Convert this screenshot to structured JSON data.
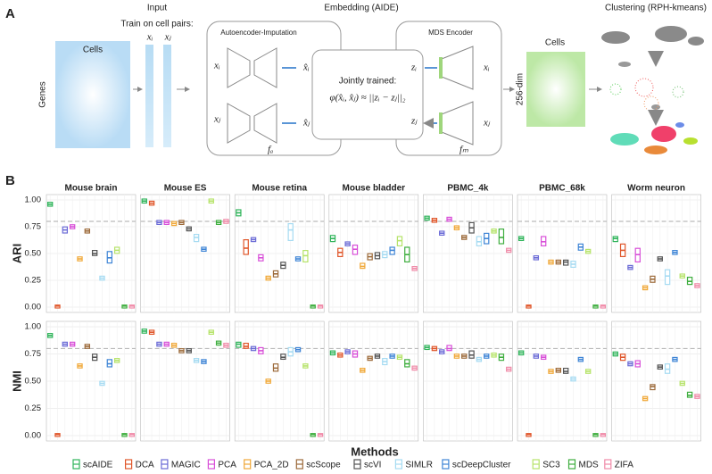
{
  "diagram": {
    "panel_a": "A",
    "panel_b": "B",
    "input_title": "Input",
    "train": "Train on cell pairs:",
    "xi": "xᵢ",
    "xj": "xⱼ",
    "cells": "Cells",
    "genes": "Genes",
    "embedding_title": "Embedding (AIDE)",
    "ae": "Autoencoder-Imputation",
    "mds": "MDS Encoder",
    "xhi": "x̂ᵢ",
    "xhj": "x̂ⱼ",
    "zi": "zᵢ",
    "zj": "zⱼ",
    "fa": "fₐ",
    "fm": "fₘ",
    "jointly": "Jointly trained:",
    "formula": "φ(x̂ᵢ, x̂ⱼ) ≈ ||zᵢ − zⱼ||₂",
    "dim": "256-dim",
    "clustering": "Clustering (RPH-kmeans)"
  },
  "chart_data": {
    "type": "box",
    "xlabel": "Methods",
    "panel_titles": [
      "Mouse brain",
      "Mouse ES",
      "Mouse retina",
      "Mouse bladder",
      "PBMC_4k",
      "PBMC_68k",
      "Worm neuron"
    ],
    "series": [
      {
        "name": "scAIDE",
        "color": "#2fb45a"
      },
      {
        "name": "DCA",
        "color": "#e0562a"
      },
      {
        "name": "MAGIC",
        "color": "#6b6bd6"
      },
      {
        "name": "PCA",
        "color": "#d84fd8"
      },
      {
        "name": "PCA_2D",
        "color": "#f0a838"
      },
      {
        "name": "scScope",
        "color": "#9c6a3a"
      },
      {
        "name": "scVI",
        "color": "#555555"
      },
      {
        "name": "SIMLR",
        "color": "#a6dbf2"
      },
      {
        "name": "scDeepCluster",
        "color": "#3f85d6"
      },
      {
        "name": "SC3",
        "color": "#b6e36a"
      },
      {
        "name": "MDS",
        "color": "#3fae3f"
      },
      {
        "name": "ZIFA",
        "color": "#f08aa8"
      }
    ],
    "ylim": [
      -0.05,
      1.05
    ],
    "yticks": [
      {
        "value": 0,
        "label": "0.00"
      },
      0.25,
      {
        "value": 0.5,
        "label": "0.50"
      },
      0.75,
      {
        "value": 1,
        "label": "1.00"
      }
    ],
    "reference_line": 0.8,
    "grid": true,
    "rows": [
      {
        "label": "ARI",
        "boxes": [
          [
            [
              0.95,
              0.96,
              0.97
            ],
            [
              0,
              0.01,
              0.01
            ],
            [
              0.7,
              0.72,
              0.74
            ],
            [
              0.74,
              0.75,
              0.76
            ],
            [
              0.44,
              0.45,
              0.46
            ],
            [
              0.7,
              0.71,
              0.72
            ],
            [
              0.49,
              0.5,
              0.52
            ],
            [
              0.26,
              0.27,
              0.28
            ],
            [
              0.42,
              0.46,
              0.51
            ],
            [
              0.51,
              0.53,
              0.55
            ],
            [
              0,
              0.01,
              0.01
            ],
            [
              0,
              0.01,
              0.01
            ]
          ],
          [
            [
              0.98,
              0.99,
              1.0
            ],
            [
              0.96,
              0.97,
              0.98
            ],
            [
              0.78,
              0.79,
              0.8
            ],
            [
              0.78,
              0.79,
              0.8
            ],
            [
              0.77,
              0.78,
              0.79
            ],
            [
              0.78,
              0.79,
              0.8
            ],
            [
              0.72,
              0.73,
              0.74
            ],
            [
              0.62,
              0.65,
              0.67
            ],
            [
              0.53,
              0.54,
              0.55
            ],
            [
              0.98,
              0.99,
              1.0
            ],
            [
              0.78,
              0.79,
              0.8
            ],
            [
              0.79,
              0.8,
              0.81
            ]
          ],
          [
            [
              0.86,
              0.88,
              0.9
            ],
            [
              0.5,
              0.55,
              0.62
            ],
            [
              0.62,
              0.63,
              0.64
            ],
            [
              0.44,
              0.46,
              0.48
            ],
            [
              0.26,
              0.27,
              0.28
            ],
            [
              0.29,
              0.31,
              0.33
            ],
            [
              0.37,
              0.39,
              0.41
            ],
            [
              0.63,
              0.72,
              0.77
            ],
            [
              0.44,
              0.45,
              0.46
            ],
            [
              0.43,
              0.48,
              0.52
            ],
            [
              0,
              0.01,
              0.01
            ],
            [
              0,
              0.01,
              0.01
            ]
          ],
          [
            [
              0.62,
              0.64,
              0.66
            ],
            [
              0.48,
              0.51,
              0.54
            ],
            [
              0.58,
              0.59,
              0.6
            ],
            [
              0.5,
              0.54,
              0.57
            ],
            [
              0.37,
              0.38,
              0.4
            ],
            [
              0.45,
              0.47,
              0.49
            ],
            [
              0.46,
              0.48,
              0.5
            ],
            [
              0.47,
              0.49,
              0.51
            ],
            [
              0.5,
              0.53,
              0.55
            ],
            [
              0.58,
              0.62,
              0.65
            ],
            [
              0.43,
              0.49,
              0.55
            ],
            [
              0.35,
              0.36,
              0.37
            ]
          ],
          [
            [
              0.82,
              0.83,
              0.84
            ],
            [
              0.8,
              0.81,
              0.82
            ],
            [
              0.68,
              0.69,
              0.7
            ],
            [
              0.81,
              0.82,
              0.83
            ],
            [
              0.73,
              0.74,
              0.75
            ],
            [
              0.64,
              0.65,
              0.66
            ],
            [
              0.7,
              0.74,
              0.78
            ],
            [
              0.58,
              0.61,
              0.65
            ],
            [
              0.6,
              0.64,
              0.68
            ],
            [
              0.7,
              0.71,
              0.72
            ],
            [
              0.6,
              0.65,
              0.72
            ],
            [
              0.52,
              0.53,
              0.54
            ]
          ],
          [
            [
              0.63,
              0.64,
              0.65
            ],
            [
              0,
              0.01,
              0.01
            ],
            [
              0.45,
              0.46,
              0.47
            ],
            [
              0.58,
              0.61,
              0.65
            ],
            [
              0.41,
              0.42,
              0.43
            ],
            [
              0.41,
              0.42,
              0.43
            ],
            [
              0.4,
              0.42,
              0.43
            ],
            [
              0.38,
              0.4,
              0.42
            ],
            [
              0.54,
              0.56,
              0.58
            ],
            [
              0.51,
              0.52,
              0.53
            ],
            [
              0,
              0.01,
              0.01
            ],
            [
              0,
              0.01,
              0.01
            ]
          ],
          [
            [
              0.62,
              0.64,
              0.65
            ],
            [
              0.48,
              0.53,
              0.58
            ],
            [
              0.36,
              0.37,
              0.38
            ],
            [
              0.43,
              0.49,
              0.54
            ],
            [
              0.17,
              0.18,
              0.19
            ],
            [
              0.24,
              0.26,
              0.28
            ],
            [
              0.44,
              0.45,
              0.46
            ],
            [
              0.22,
              0.29,
              0.34
            ],
            [
              0.5,
              0.51,
              0.52
            ],
            [
              0.28,
              0.29,
              0.3
            ],
            [
              0.22,
              0.24,
              0.27
            ],
            [
              0.19,
              0.2,
              0.21
            ]
          ]
        ]
      },
      {
        "label": "NMI",
        "boxes": [
          [
            [
              0.91,
              0.92,
              0.93
            ],
            [
              0,
              0.01,
              0.01
            ],
            [
              0.83,
              0.84,
              0.85
            ],
            [
              0.83,
              0.84,
              0.85
            ],
            [
              0.63,
              0.64,
              0.65
            ],
            [
              0.81,
              0.82,
              0.83
            ],
            [
              0.7,
              0.72,
              0.74
            ],
            [
              0.47,
              0.48,
              0.49
            ],
            [
              0.64,
              0.66,
              0.69
            ],
            [
              0.68,
              0.69,
              0.7
            ],
            [
              0,
              0.01,
              0.01
            ],
            [
              0,
              0.01,
              0.01
            ]
          ],
          [
            [
              0.95,
              0.96,
              0.97
            ],
            [
              0.94,
              0.95,
              0.96
            ],
            [
              0.83,
              0.84,
              0.85
            ],
            [
              0.83,
              0.84,
              0.85
            ],
            [
              0.82,
              0.83,
              0.84
            ],
            [
              0.77,
              0.78,
              0.79
            ],
            [
              0.77,
              0.78,
              0.79
            ],
            [
              0.68,
              0.69,
              0.7
            ],
            [
              0.67,
              0.68,
              0.69
            ],
            [
              0.94,
              0.95,
              0.96
            ],
            [
              0.84,
              0.85,
              0.86
            ],
            [
              0.82,
              0.83,
              0.84
            ]
          ],
          [
            [
              0.82,
              0.84,
              0.85
            ],
            [
              0.81,
              0.82,
              0.84
            ],
            [
              0.79,
              0.8,
              0.81
            ],
            [
              0.76,
              0.78,
              0.8
            ],
            [
              0.49,
              0.5,
              0.51
            ],
            [
              0.6,
              0.62,
              0.65
            ],
            [
              0.71,
              0.72,
              0.74
            ],
            [
              0.74,
              0.77,
              0.8
            ],
            [
              0.78,
              0.79,
              0.8
            ],
            [
              0.63,
              0.64,
              0.65
            ],
            [
              0,
              0.01,
              0.01
            ],
            [
              0,
              0.01,
              0.01
            ]
          ],
          [
            [
              0.75,
              0.76,
              0.77
            ],
            [
              0.73,
              0.74,
              0.75
            ],
            [
              0.76,
              0.77,
              0.78
            ],
            [
              0.73,
              0.75,
              0.77
            ],
            [
              0.59,
              0.6,
              0.61
            ],
            [
              0.7,
              0.71,
              0.72
            ],
            [
              0.72,
              0.73,
              0.74
            ],
            [
              0.66,
              0.68,
              0.7
            ],
            [
              0.72,
              0.73,
              0.74
            ],
            [
              0.71,
              0.72,
              0.73
            ],
            [
              0.64,
              0.66,
              0.69
            ],
            [
              0.61,
              0.62,
              0.63
            ]
          ],
          [
            [
              0.8,
              0.81,
              0.82
            ],
            [
              0.79,
              0.8,
              0.81
            ],
            [
              0.76,
              0.77,
              0.78
            ],
            [
              0.79,
              0.8,
              0.82
            ],
            [
              0.72,
              0.73,
              0.74
            ],
            [
              0.72,
              0.73,
              0.74
            ],
            [
              0.72,
              0.74,
              0.77
            ],
            [
              0.69,
              0.7,
              0.71
            ],
            [
              0.72,
              0.73,
              0.74
            ],
            [
              0.73,
              0.74,
              0.75
            ],
            [
              0.7,
              0.72,
              0.74
            ],
            [
              0.6,
              0.61,
              0.62
            ]
          ],
          [
            [
              0.75,
              0.76,
              0.77
            ],
            [
              0,
              0.01,
              0.01
            ],
            [
              0.72,
              0.73,
              0.74
            ],
            [
              0.71,
              0.72,
              0.73
            ],
            [
              0.58,
              0.59,
              0.6
            ],
            [
              0.59,
              0.6,
              0.61
            ],
            [
              0.58,
              0.59,
              0.61
            ],
            [
              0.51,
              0.52,
              0.53
            ],
            [
              0.69,
              0.7,
              0.71
            ],
            [
              0.58,
              0.59,
              0.6
            ],
            [
              0,
              0.01,
              0.01
            ],
            [
              0,
              0.01,
              0.01
            ]
          ],
          [
            [
              0.74,
              0.75,
              0.76
            ],
            [
              0.7,
              0.72,
              0.74
            ],
            [
              0.65,
              0.66,
              0.67
            ],
            [
              0.64,
              0.66,
              0.68
            ],
            [
              0.33,
              0.34,
              0.35
            ],
            [
              0.43,
              0.45,
              0.46
            ],
            [
              0.62,
              0.63,
              0.64
            ],
            [
              0.58,
              0.61,
              0.65
            ],
            [
              0.69,
              0.7,
              0.71
            ],
            [
              0.47,
              0.48,
              0.49
            ],
            [
              0.36,
              0.37,
              0.39
            ],
            [
              0.35,
              0.36,
              0.37
            ]
          ]
        ]
      }
    ]
  }
}
